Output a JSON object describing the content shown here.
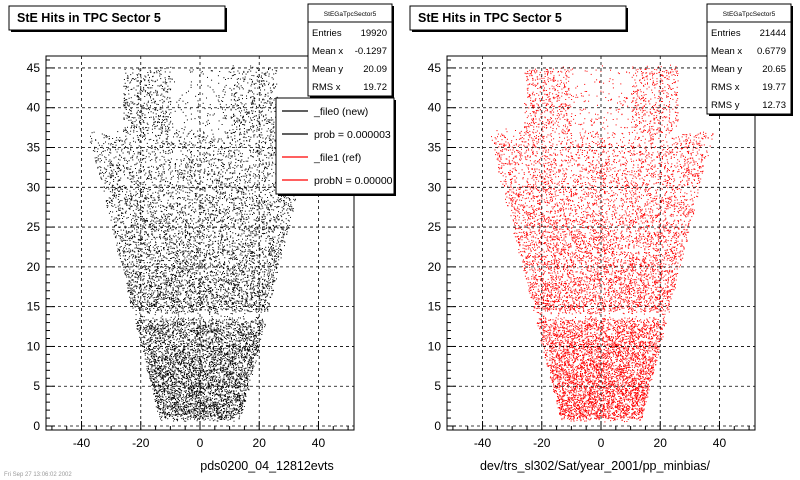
{
  "footer_stamp": "Fri Sep 27 13:06:02 2002",
  "chart_data": [
    {
      "type": "scatter",
      "title": "StE Hits in TPC Sector 5",
      "xlabel": "pds0200_04_12812evts",
      "ylabel": "",
      "xlim": [
        -52,
        52
      ],
      "ylim": [
        -0.5,
        46.5
      ],
      "x_ticks": [
        -40,
        -20,
        0,
        20,
        40
      ],
      "y_ticks": [
        0,
        5,
        10,
        15,
        20,
        25,
        30,
        35,
        40,
        45
      ],
      "grid": true,
      "marker_color": "#000000",
      "stats": {
        "name": "StEGaTpcSector5",
        "rows": [
          {
            "label": "Entries",
            "value": "19920"
          },
          {
            "label": "Mean x",
            "value": "-0.1297"
          },
          {
            "label": "Mean y",
            "value": "20.09"
          },
          {
            "label": "RMS x",
            "value": "19.72"
          }
        ]
      },
      "legend": {
        "placement": "top-right",
        "entries": [
          {
            "label": "_file0 (new)",
            "color": "#000000"
          },
          {
            "label": "prob = 0.000003",
            "color": "#000000"
          },
          {
            "label": "_file1 (ref)",
            "color": "#ff0000"
          },
          {
            "label": "probN = 0.00000",
            "color": "#ff0000"
          }
        ]
      },
      "distribution": {
        "entries": 19920,
        "pad_rows": [
          1,
          45
        ],
        "gap_rows": [
          14
        ],
        "half_width_bottom": 13,
        "half_width_top": 38
      }
    },
    {
      "type": "scatter",
      "title": "StE Hits in TPC Sector 5",
      "xlabel": "dev/trs_sl302/Sat/year_2001/pp_minbias/",
      "ylabel": "",
      "xlim": [
        -52,
        52
      ],
      "ylim": [
        -0.5,
        46.5
      ],
      "x_ticks": [
        -40,
        -20,
        0,
        20,
        40
      ],
      "y_ticks": [
        0,
        5,
        10,
        15,
        20,
        25,
        30,
        35,
        40,
        45
      ],
      "grid": true,
      "marker_color": "#ff0000",
      "stats": {
        "name": "StEGaTpcSector5",
        "rows": [
          {
            "label": "Entries",
            "value": "21444"
          },
          {
            "label": "Mean x",
            "value": "0.6779"
          },
          {
            "label": "Mean y",
            "value": "20.65"
          },
          {
            "label": "RMS x",
            "value": "19.77"
          },
          {
            "label": "RMS y",
            "value": "12.73"
          }
        ]
      },
      "distribution": {
        "entries": 21444,
        "pad_rows": [
          1,
          45
        ],
        "gap_rows": [
          14
        ],
        "half_width_bottom": 13,
        "half_width_top": 38
      }
    }
  ]
}
